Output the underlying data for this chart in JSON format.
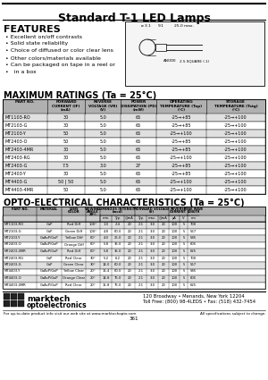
{
  "title": "Standard T-1 LED Lamps",
  "features_title": "FEATURES",
  "features": [
    "Excellent on/off contrasts",
    "Solid state reliability",
    "Choice of diffused or color clear lens",
    "Other colors/materials available",
    "Can be packaged on tape in a reel or",
    "  in a box"
  ],
  "max_ratings_title": "MAXIMUM RATINGS (Ta = 25°C)",
  "max_ratings_col_headers": [
    "PART NO.",
    "FORWARD\nCURRENT(I_F)\n(mA)",
    "REVERSE\nVOLTAGE (V_R)\n(V)",
    "POWER\nDISSIPATION (P_D)\n(mW)",
    "OPERATING\nTEMPERATURE (T_op)\n(°C)",
    "STORAGE\nTEMPERATURE (T_stg)\n(°C)"
  ],
  "max_ratings_data": [
    [
      "MT1103-RO",
      "30",
      "5.0",
      "65",
      "-25→+85",
      "-25→+100"
    ],
    [
      "MT2103-G",
      "30",
      "5.0",
      "65",
      "-25→+85",
      "-25→+100"
    ],
    [
      "MT2103-Y",
      "50",
      "5.0",
      "65",
      "-25→+100",
      "-25→+100"
    ],
    [
      "MT2403-O",
      "50",
      "5.0",
      "65",
      "-25→+85",
      "-25→+100"
    ],
    [
      "MT2403-4MR",
      "30",
      "5.0",
      "65",
      "-25→+85",
      "-25→+100"
    ],
    [
      "MT2403-RG",
      "30",
      "5.0",
      "65",
      "-25→+100",
      "-25→+100"
    ],
    [
      "MT2403-G",
      "7.5",
      "3.0",
      "27",
      "-25→+85",
      "-25→+100"
    ],
    [
      "MT2403-Y",
      "30",
      "5.0",
      "65",
      "-25→+85",
      "-25→+100"
    ],
    [
      "MT4403-G",
      "50 | 50",
      "5.0",
      "65",
      "-25→+100",
      "-25→+100"
    ],
    [
      "MT4403-4MR",
      "50",
      "5.0",
      "65",
      "-25→+100",
      "-25→+100"
    ]
  ],
  "opto_title": "OPTO-ELECTRICAL CHARACTERISTICS (Ta = 25°C)",
  "opto_data": [
    [
      "MT1103-RO",
      "GaP",
      "Red Diff",
      "100°",
      "1.0",
      "2.4",
      "20",
      "2.1",
      "3.0",
      "20",
      "100",
      "5",
      "700"
    ],
    [
      "MT2103-G",
      "GaP",
      "Green Diff",
      "100°",
      "4.8",
      "60.0",
      "20",
      "2.1",
      "3.0",
      "20",
      "100",
      "5",
      "567"
    ],
    [
      "MT2103-Y",
      "GaAsP/GaP",
      "Yellow Diff",
      "60°",
      "4.0",
      "25.0",
      "20",
      "2.1",
      "3.0",
      "20",
      "100",
      "5",
      "585"
    ],
    [
      "MT2403-O",
      "GaAsP/GaP",
      "Orange Diff",
      "60°",
      "5.8",
      "35.0",
      "20",
      "2.1",
      "3.0",
      "20",
      "100",
      "5",
      "605"
    ],
    [
      "MT2403-4MR",
      "GaAsP/GaP",
      "Red Diff",
      "60°",
      "5.8",
      "35.0",
      "20",
      "2.1",
      "3.0",
      "20",
      "100",
      "5",
      "625"
    ],
    [
      "MT2403-RG",
      "GaP",
      "Red Clear",
      "30°",
      "5.2",
      "6.2",
      "20",
      "2.1",
      "3.0",
      "20",
      "100",
      "5",
      "700"
    ],
    [
      "MT2403-G",
      "GaP",
      "Green Clear",
      "30°",
      "14.0",
      "60.0",
      "20",
      "2.1",
      "3.0",
      "20",
      "100",
      "5",
      "567"
    ],
    [
      "MT4403-Y",
      "GaAsP/GaP",
      "Yellow Clear",
      "20°",
      "15.4",
      "60.0",
      "20",
      "2.1",
      "3.0",
      "20",
      "100",
      "5",
      "585"
    ],
    [
      "MT4403-O",
      "GaAsP/GaP",
      "Orange Clear",
      "20°",
      "14.8",
      "75.0",
      "20",
      "2.1",
      "3.0",
      "20",
      "100",
      "5",
      "605"
    ],
    [
      "MT4403-4MR",
      "GaAsP/GaP",
      "Red Clear",
      "20°",
      "15.8",
      "75.0",
      "20",
      "2.1",
      "3.0",
      "20",
      "100",
      "5",
      "625"
    ]
  ],
  "bg_color": "#ffffff"
}
